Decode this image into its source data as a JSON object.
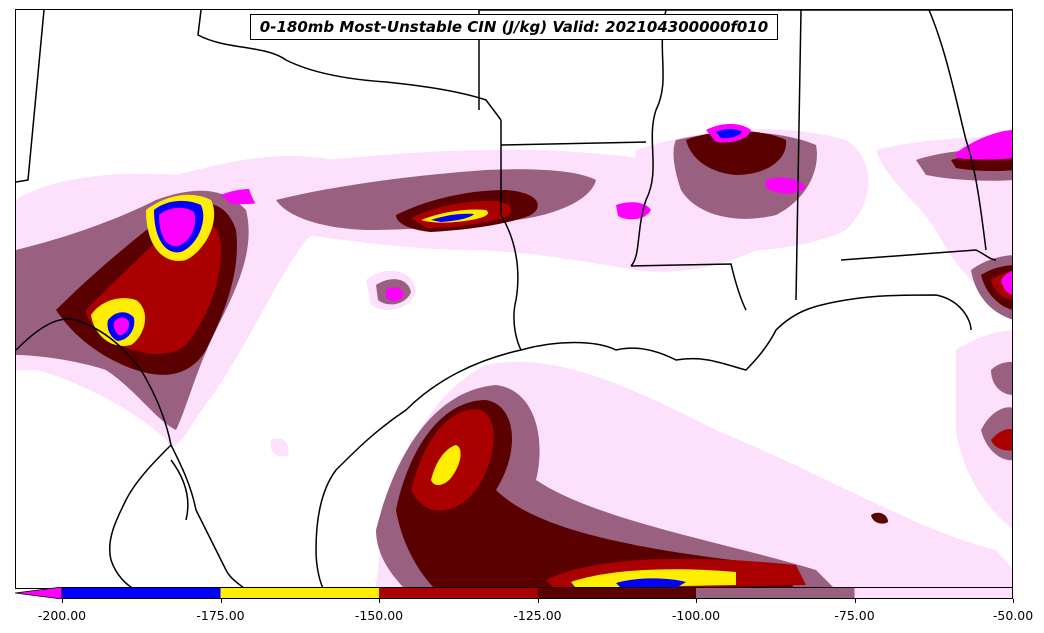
{
  "title": "0-180mb Most-Unstable CIN (J/kg) Valid: 202104300000f010",
  "colorbar": {
    "bins": [
      {
        "low": -200,
        "high": -175,
        "color": "#0000ff"
      },
      {
        "low": -175,
        "high": -150,
        "color": "#ffee00"
      },
      {
        "low": -150,
        "high": -125,
        "color": "#aa0000"
      },
      {
        "low": -125,
        "high": -100,
        "color": "#5a0000"
      },
      {
        "low": -100,
        "high": -75,
        "color": "#9a6080"
      },
      {
        "low": -75,
        "high": -50,
        "color": "#fce0fc"
      }
    ],
    "extend_low_color": "#ff00ff",
    "tick_labels": [
      "-200.00",
      "-175.00",
      "-150.00",
      "-125.00",
      "-100.00",
      "-75.00",
      "-50.00"
    ]
  },
  "colors": {
    "magenta": "#ff00ff",
    "blue": "#0000ff",
    "yellow": "#ffee00",
    "red": "#aa0000",
    "darkred": "#5a0000",
    "mauve": "#9a6080",
    "pink": "#fce0fc"
  }
}
